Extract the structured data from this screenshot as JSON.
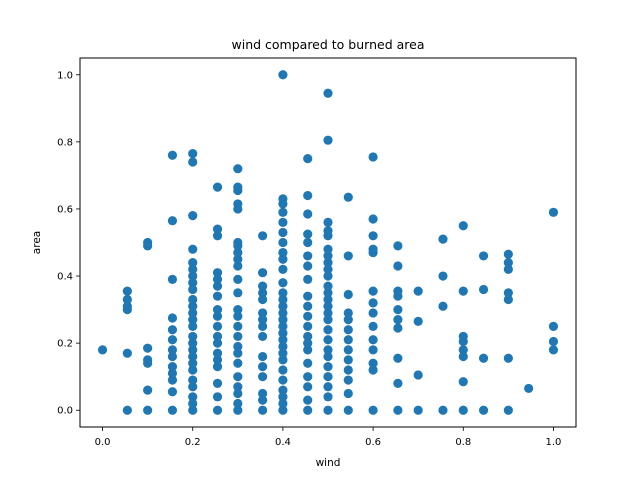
{
  "chart_data": {
    "type": "scatter",
    "title": "wind compared to burned area",
    "xlabel": "wind",
    "ylabel": "area",
    "xlim": [
      -0.05,
      1.05
    ],
    "ylim": [
      -0.05,
      1.05
    ],
    "x_ticks": [
      0.0,
      0.2,
      0.4,
      0.6,
      0.8,
      1.0
    ],
    "x_tick_labels": [
      "0.0",
      "0.2",
      "0.4",
      "0.6",
      "0.8",
      "1.0"
    ],
    "y_ticks": [
      0.0,
      0.2,
      0.4,
      0.6,
      0.8,
      1.0
    ],
    "y_tick_labels": [
      "0.0",
      "0.2",
      "0.4",
      "0.6",
      "0.8",
      "1.0"
    ],
    "grid": false,
    "marker_color": "#1f77b4",
    "series": [
      {
        "points": [
          [
            0.0,
            0.18
          ],
          [
            0.055,
            0.0
          ],
          [
            0.055,
            0.17
          ],
          [
            0.055,
            0.3
          ],
          [
            0.055,
            0.31
          ],
          [
            0.055,
            0.33
          ],
          [
            0.055,
            0.355
          ],
          [
            0.1,
            0.0
          ],
          [
            0.1,
            0.06
          ],
          [
            0.1,
            0.14
          ],
          [
            0.1,
            0.15
          ],
          [
            0.1,
            0.185
          ],
          [
            0.1,
            0.49
          ],
          [
            0.1,
            0.5
          ],
          [
            0.155,
            0.0
          ],
          [
            0.155,
            0.055
          ],
          [
            0.155,
            0.09
          ],
          [
            0.155,
            0.11
          ],
          [
            0.155,
            0.13
          ],
          [
            0.155,
            0.16
          ],
          [
            0.155,
            0.18
          ],
          [
            0.155,
            0.21
          ],
          [
            0.155,
            0.24
          ],
          [
            0.155,
            0.275
          ],
          [
            0.155,
            0.39
          ],
          [
            0.155,
            0.565
          ],
          [
            0.155,
            0.76
          ],
          [
            0.2,
            0.0
          ],
          [
            0.2,
            0.02
          ],
          [
            0.2,
            0.04
          ],
          [
            0.2,
            0.07
          ],
          [
            0.2,
            0.09
          ],
          [
            0.2,
            0.12
          ],
          [
            0.2,
            0.14
          ],
          [
            0.2,
            0.16
          ],
          [
            0.2,
            0.18
          ],
          [
            0.2,
            0.2
          ],
          [
            0.2,
            0.22
          ],
          [
            0.2,
            0.25
          ],
          [
            0.2,
            0.27
          ],
          [
            0.2,
            0.29
          ],
          [
            0.2,
            0.31
          ],
          [
            0.2,
            0.33
          ],
          [
            0.2,
            0.36
          ],
          [
            0.2,
            0.38
          ],
          [
            0.2,
            0.4
          ],
          [
            0.2,
            0.42
          ],
          [
            0.2,
            0.44
          ],
          [
            0.2,
            0.48
          ],
          [
            0.2,
            0.58
          ],
          [
            0.2,
            0.74
          ],
          [
            0.2,
            0.765
          ],
          [
            0.255,
            0.0
          ],
          [
            0.255,
            0.04
          ],
          [
            0.255,
            0.08
          ],
          [
            0.255,
            0.13
          ],
          [
            0.255,
            0.15
          ],
          [
            0.255,
            0.17
          ],
          [
            0.255,
            0.2
          ],
          [
            0.255,
            0.22
          ],
          [
            0.255,
            0.25
          ],
          [
            0.255,
            0.28
          ],
          [
            0.255,
            0.3
          ],
          [
            0.255,
            0.34
          ],
          [
            0.255,
            0.37
          ],
          [
            0.255,
            0.39
          ],
          [
            0.255,
            0.41
          ],
          [
            0.255,
            0.52
          ],
          [
            0.255,
            0.54
          ],
          [
            0.255,
            0.665
          ],
          [
            0.3,
            0.0
          ],
          [
            0.3,
            0.02
          ],
          [
            0.3,
            0.05
          ],
          [
            0.3,
            0.07
          ],
          [
            0.3,
            0.1
          ],
          [
            0.3,
            0.14
          ],
          [
            0.3,
            0.17
          ],
          [
            0.3,
            0.19
          ],
          [
            0.3,
            0.22
          ],
          [
            0.3,
            0.25
          ],
          [
            0.3,
            0.28
          ],
          [
            0.3,
            0.3
          ],
          [
            0.3,
            0.35
          ],
          [
            0.3,
            0.39
          ],
          [
            0.3,
            0.43
          ],
          [
            0.3,
            0.45
          ],
          [
            0.3,
            0.47
          ],
          [
            0.3,
            0.49
          ],
          [
            0.3,
            0.5
          ],
          [
            0.3,
            0.6
          ],
          [
            0.3,
            0.615
          ],
          [
            0.3,
            0.655
          ],
          [
            0.3,
            0.665
          ],
          [
            0.3,
            0.72
          ],
          [
            0.355,
            0.0
          ],
          [
            0.355,
            0.03
          ],
          [
            0.355,
            0.05
          ],
          [
            0.355,
            0.1
          ],
          [
            0.355,
            0.13
          ],
          [
            0.355,
            0.16
          ],
          [
            0.355,
            0.22
          ],
          [
            0.355,
            0.25
          ],
          [
            0.355,
            0.27
          ],
          [
            0.355,
            0.29
          ],
          [
            0.355,
            0.33
          ],
          [
            0.355,
            0.35
          ],
          [
            0.355,
            0.37
          ],
          [
            0.355,
            0.41
          ],
          [
            0.355,
            0.52
          ],
          [
            0.4,
            0.0
          ],
          [
            0.4,
            0.02
          ],
          [
            0.4,
            0.04
          ],
          [
            0.4,
            0.06
          ],
          [
            0.4,
            0.09
          ],
          [
            0.4,
            0.12
          ],
          [
            0.4,
            0.15
          ],
          [
            0.4,
            0.17
          ],
          [
            0.4,
            0.19
          ],
          [
            0.4,
            0.21
          ],
          [
            0.4,
            0.23
          ],
          [
            0.4,
            0.25
          ],
          [
            0.4,
            0.27
          ],
          [
            0.4,
            0.29
          ],
          [
            0.4,
            0.31
          ],
          [
            0.4,
            0.33
          ],
          [
            0.4,
            0.35
          ],
          [
            0.4,
            0.38
          ],
          [
            0.4,
            0.42
          ],
          [
            0.4,
            0.45
          ],
          [
            0.4,
            0.47
          ],
          [
            0.4,
            0.5
          ],
          [
            0.4,
            0.53
          ],
          [
            0.4,
            0.56
          ],
          [
            0.4,
            0.59
          ],
          [
            0.4,
            0.615
          ],
          [
            0.4,
            0.63
          ],
          [
            0.4,
            1.0
          ],
          [
            0.455,
            0.0
          ],
          [
            0.455,
            0.03
          ],
          [
            0.455,
            0.07
          ],
          [
            0.455,
            0.1
          ],
          [
            0.455,
            0.14
          ],
          [
            0.455,
            0.18
          ],
          [
            0.455,
            0.2
          ],
          [
            0.455,
            0.22
          ],
          [
            0.455,
            0.25
          ],
          [
            0.455,
            0.28
          ],
          [
            0.455,
            0.31
          ],
          [
            0.455,
            0.34
          ],
          [
            0.455,
            0.39
          ],
          [
            0.455,
            0.43
          ],
          [
            0.455,
            0.46
          ],
          [
            0.455,
            0.5
          ],
          [
            0.455,
            0.525
          ],
          [
            0.455,
            0.585
          ],
          [
            0.455,
            0.64
          ],
          [
            0.455,
            0.75
          ],
          [
            0.5,
            0.0
          ],
          [
            0.5,
            0.04
          ],
          [
            0.5,
            0.07
          ],
          [
            0.5,
            0.1
          ],
          [
            0.5,
            0.13
          ],
          [
            0.5,
            0.16
          ],
          [
            0.5,
            0.18
          ],
          [
            0.5,
            0.21
          ],
          [
            0.5,
            0.24
          ],
          [
            0.5,
            0.27
          ],
          [
            0.5,
            0.29
          ],
          [
            0.5,
            0.31
          ],
          [
            0.5,
            0.33
          ],
          [
            0.5,
            0.35
          ],
          [
            0.5,
            0.37
          ],
          [
            0.5,
            0.4
          ],
          [
            0.5,
            0.42
          ],
          [
            0.5,
            0.44
          ],
          [
            0.5,
            0.46
          ],
          [
            0.5,
            0.48
          ],
          [
            0.5,
            0.52
          ],
          [
            0.5,
            0.535
          ],
          [
            0.5,
            0.56
          ],
          [
            0.5,
            0.805
          ],
          [
            0.5,
            0.945
          ],
          [
            0.545,
            0.0
          ],
          [
            0.545,
            0.05
          ],
          [
            0.545,
            0.09
          ],
          [
            0.545,
            0.12
          ],
          [
            0.545,
            0.15
          ],
          [
            0.545,
            0.18
          ],
          [
            0.545,
            0.21
          ],
          [
            0.545,
            0.24
          ],
          [
            0.545,
            0.27
          ],
          [
            0.545,
            0.29
          ],
          [
            0.545,
            0.345
          ],
          [
            0.545,
            0.46
          ],
          [
            0.545,
            0.635
          ],
          [
            0.6,
            0.0
          ],
          [
            0.6,
            0.12
          ],
          [
            0.6,
            0.14
          ],
          [
            0.6,
            0.18
          ],
          [
            0.6,
            0.21
          ],
          [
            0.6,
            0.25
          ],
          [
            0.6,
            0.29
          ],
          [
            0.6,
            0.32
          ],
          [
            0.6,
            0.355
          ],
          [
            0.6,
            0.47
          ],
          [
            0.6,
            0.48
          ],
          [
            0.6,
            0.52
          ],
          [
            0.6,
            0.57
          ],
          [
            0.6,
            0.755
          ],
          [
            0.655,
            0.0
          ],
          [
            0.655,
            0.08
          ],
          [
            0.655,
            0.155
          ],
          [
            0.655,
            0.245
          ],
          [
            0.655,
            0.27
          ],
          [
            0.655,
            0.3
          ],
          [
            0.655,
            0.34
          ],
          [
            0.655,
            0.355
          ],
          [
            0.655,
            0.43
          ],
          [
            0.655,
            0.49
          ],
          [
            0.7,
            0.0
          ],
          [
            0.7,
            0.105
          ],
          [
            0.7,
            0.265
          ],
          [
            0.7,
            0.355
          ],
          [
            0.755,
            0.0
          ],
          [
            0.755,
            0.31
          ],
          [
            0.755,
            0.4
          ],
          [
            0.755,
            0.51
          ],
          [
            0.8,
            0.0
          ],
          [
            0.8,
            0.085
          ],
          [
            0.8,
            0.16
          ],
          [
            0.8,
            0.18
          ],
          [
            0.8,
            0.205
          ],
          [
            0.8,
            0.22
          ],
          [
            0.8,
            0.355
          ],
          [
            0.8,
            0.55
          ],
          [
            0.845,
            0.0
          ],
          [
            0.845,
            0.155
          ],
          [
            0.845,
            0.36
          ],
          [
            0.845,
            0.46
          ],
          [
            0.9,
            0.0
          ],
          [
            0.9,
            0.155
          ],
          [
            0.9,
            0.33
          ],
          [
            0.9,
            0.35
          ],
          [
            0.9,
            0.42
          ],
          [
            0.9,
            0.44
          ],
          [
            0.9,
            0.465
          ],
          [
            0.945,
            0.065
          ],
          [
            1.0,
            0.18
          ],
          [
            1.0,
            0.205
          ],
          [
            1.0,
            0.25
          ],
          [
            1.0,
            0.59
          ]
        ]
      }
    ]
  }
}
